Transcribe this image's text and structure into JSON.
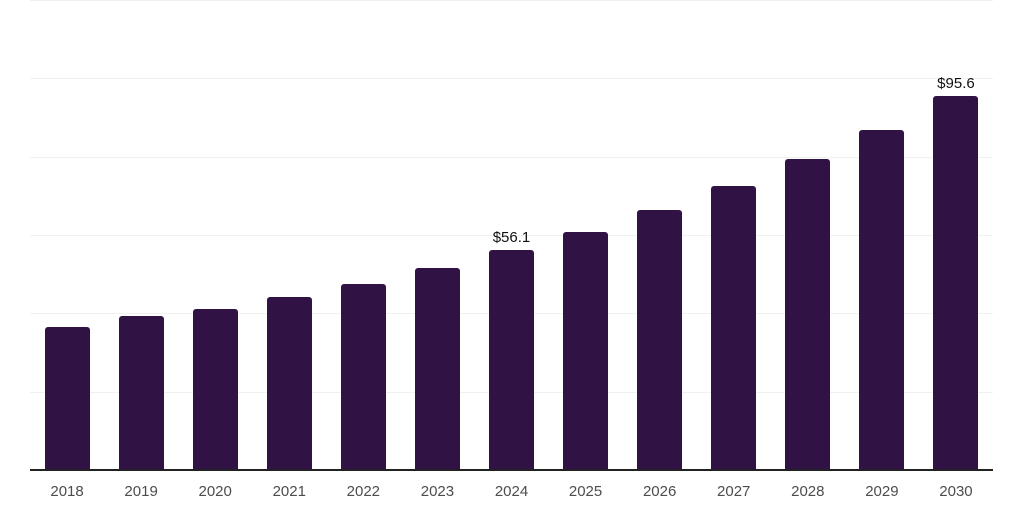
{
  "chart_data": {
    "type": "bar",
    "title": "",
    "xlabel": "",
    "ylabel": "",
    "categories": [
      "2018",
      "2019",
      "2020",
      "2021",
      "2022",
      "2023",
      "2024",
      "2025",
      "2026",
      "2027",
      "2028",
      "2029",
      "2030"
    ],
    "values": [
      36.6,
      39.4,
      41.0,
      44.1,
      47.6,
      51.7,
      56.1,
      60.8,
      66.3,
      72.4,
      79.3,
      86.8,
      95.6
    ],
    "value_labels": {
      "2024": "$56.1",
      "2030": "$95.6"
    },
    "ylim": [
      0,
      120
    ],
    "grid_step": 20,
    "grid": "horizontal-only",
    "legend_position": "none",
    "colors": {
      "bar": "#301244",
      "axis_line": "#222222",
      "gridline": "#f0f0f0",
      "year_label": "#4d4d4d",
      "data_label": "#111111",
      "background": "#ffffff"
    }
  }
}
